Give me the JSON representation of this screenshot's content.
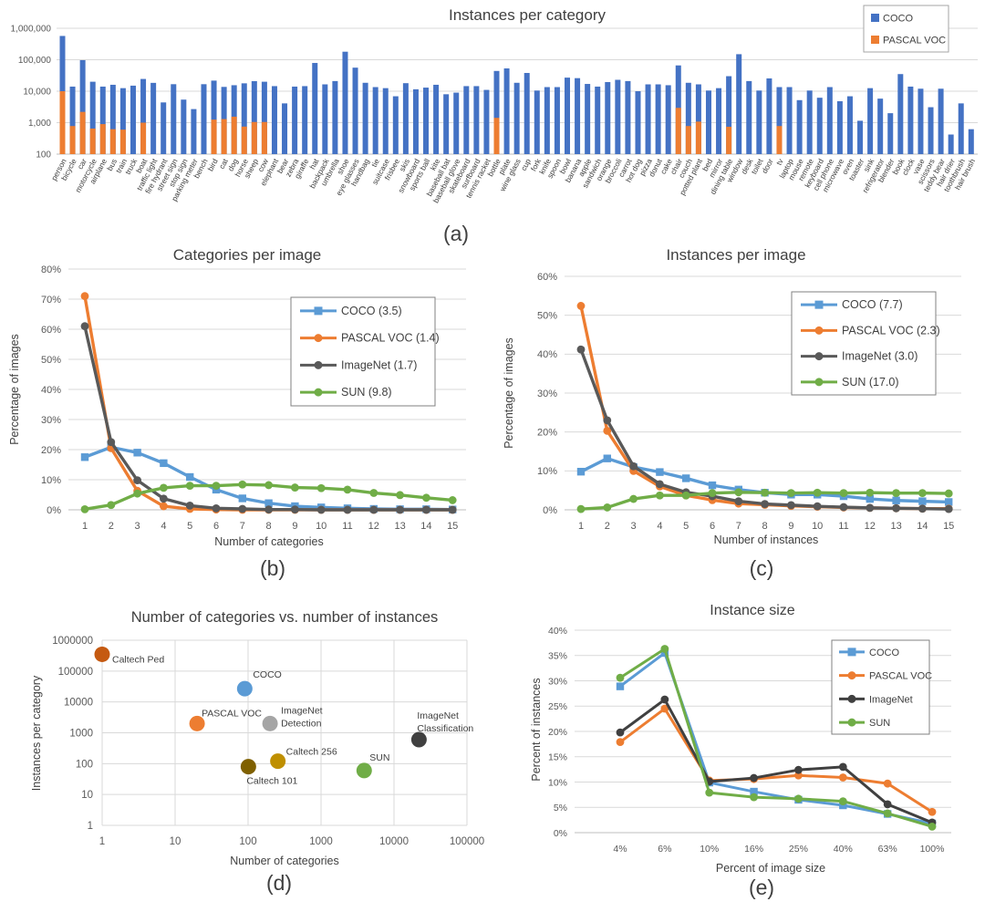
{
  "panels": {
    "a": "(a)",
    "b": "(b)",
    "c": "(c)",
    "d": "(d)",
    "e": "(e)"
  },
  "palette": {
    "coco_bar": "#4472C4",
    "pascal_orange": "#ED7D31",
    "coco_line": "#5B9BD5",
    "imagenet_gray": "#595959",
    "imagenet_dark": "#404040",
    "sun_green": "#70AD47",
    "gridline": "#D9D9D9",
    "axis_text": "#595959",
    "title_text": "#404040"
  },
  "chart_data": [
    {
      "id": "a",
      "type": "bar",
      "title": "Instances per category",
      "y_axis": {
        "scale": "log",
        "ticks": [
          "100",
          "1,000",
          "10,000",
          "100,000",
          "1,000,000"
        ],
        "tick_values": [
          100,
          1000,
          10000,
          100000,
          1000000
        ]
      },
      "legend": [
        {
          "label": "COCO",
          "color": "#4472C4"
        },
        {
          "label": "PASCAL VOC",
          "color": "#ED7D31"
        }
      ],
      "categories": [
        "person",
        "bicycle",
        "car",
        "motorcycle",
        "airplane",
        "bus",
        "train",
        "truck",
        "boat",
        "traffic light",
        "fire hydrant",
        "street sign",
        "stop sign",
        "parking meter",
        "bench",
        "bird",
        "cat",
        "dog",
        "horse",
        "sheep",
        "cow",
        "elephant",
        "bear",
        "zebra",
        "giraffe",
        "hat",
        "backpack",
        "umbrella",
        "shoe",
        "eye glasses",
        "handbag",
        "tie",
        "suitcase",
        "frisbee",
        "skis",
        "snowboard",
        "sports ball",
        "kite",
        "baseball bat",
        "baseball glove",
        "skateboard",
        "surfboard",
        "tennis racket",
        "bottle",
        "plate",
        "wine glass",
        "cup",
        "fork",
        "knife",
        "spoon",
        "bowl",
        "banana",
        "apple",
        "sandwich",
        "orange",
        "broccoli",
        "carrot",
        "hot dog",
        "pizza",
        "donut",
        "cake",
        "chair",
        "couch",
        "potted plant",
        "bed",
        "mirror",
        "dining table",
        "window",
        "desk",
        "toilet",
        "door",
        "tv",
        "laptop",
        "mouse",
        "remote",
        "keyboard",
        "cell phone",
        "microwave",
        "oven",
        "toaster",
        "sink",
        "refrigerator",
        "blender",
        "book",
        "clock",
        "vase",
        "scissors",
        "teddy bear",
        "hair drier",
        "toothbrush",
        "hair brush"
      ],
      "series": [
        {
          "name": "COCO",
          "color": "#4472C4",
          "values": [
            570000,
            14000,
            97000,
            20000,
            14000,
            16000,
            12500,
            15000,
            24500,
            18400,
            4400,
            16700,
            5400,
            2700,
            16700,
            21700,
            13700,
            15500,
            17800,
            20900,
            20000,
            14500,
            4100,
            14000,
            14500,
            79000,
            16500,
            21000,
            180000,
            56000,
            18500,
            13500,
            12500,
            6900,
            18000,
            11500,
            13000,
            16000,
            8000,
            9000,
            14500,
            14500,
            11000,
            44000,
            53000,
            18500,
            38000,
            10500,
            13500,
            13500,
            27000,
            26000,
            17000,
            14000,
            19500,
            23000,
            21000,
            10000,
            16500,
            16500,
            15500,
            66000,
            18500,
            16500,
            10500,
            12500,
            30000,
            150000,
            21000,
            10500,
            25500,
            13500,
            13500,
            5200,
            10500,
            6200,
            13500,
            4800,
            6900,
            1150,
            12500,
            5800,
            2000,
            35000,
            14000,
            12000,
            3100,
            12000,
            420,
            4100,
            620
          ]
        },
        {
          "name": "PASCAL VOC",
          "color": "#ED7D31",
          "values": [
            10000,
            780,
            2200,
            650,
            900,
            620,
            600,
            0,
            1000,
            0,
            0,
            0,
            0,
            0,
            0,
            1250,
            1300,
            1550,
            750,
            1050,
            1050,
            0,
            0,
            0,
            0,
            0,
            0,
            0,
            0,
            0,
            0,
            0,
            0,
            0,
            0,
            0,
            0,
            0,
            0,
            0,
            0,
            0,
            0,
            1420,
            0,
            0,
            0,
            0,
            0,
            0,
            0,
            0,
            0,
            0,
            0,
            0,
            0,
            0,
            0,
            0,
            0,
            2950,
            780,
            1080,
            0,
            0,
            740,
            0,
            0,
            0,
            0,
            780,
            0,
            0,
            0,
            0,
            0,
            0,
            0,
            0,
            0,
            0,
            0,
            0,
            0,
            0,
            0,
            0,
            0,
            0,
            0
          ]
        }
      ]
    },
    {
      "id": "b",
      "type": "line",
      "title": "Categories per image",
      "xlabel": "Number of categories",
      "ylabel": "Percentage of images",
      "x": [
        1,
        2,
        3,
        4,
        5,
        6,
        7,
        8,
        9,
        10,
        11,
        12,
        13,
        14,
        15
      ],
      "ylim": [
        0,
        80
      ],
      "ytick_step": 10,
      "series": [
        {
          "name": "COCO (3.5)",
          "color": "#5B9BD5",
          "marker": "square",
          "values": [
            17.5,
            20.8,
            19.0,
            15.5,
            10.9,
            6.7,
            3.8,
            2.2,
            1.2,
            0.8,
            0.5,
            0.3,
            0.2,
            0.2,
            0.1
          ]
        },
        {
          "name": "PASCAL VOC (1.4)",
          "color": "#ED7D31",
          "marker": "circle",
          "values": [
            71,
            20.5,
            6.3,
            1.2,
            0.3,
            0.1,
            0,
            0,
            0,
            0,
            0,
            0,
            0,
            0,
            0
          ]
        },
        {
          "name": "ImageNet (1.7)",
          "color": "#595959",
          "marker": "circle",
          "values": [
            61,
            22.5,
            9.8,
            3.7,
            1.4,
            0.5,
            0.3,
            0.1,
            0.1,
            0,
            0,
            0,
            0,
            0,
            0
          ]
        },
        {
          "name": "SUN (9.8)",
          "color": "#70AD47",
          "marker": "circle",
          "values": [
            0.2,
            1.6,
            5.4,
            7.3,
            8.0,
            8.0,
            8.4,
            8.2,
            7.4,
            7.2,
            6.7,
            5.6,
            4.9,
            4.0,
            3.2
          ]
        }
      ]
    },
    {
      "id": "c",
      "type": "line",
      "title": "Instances per image",
      "xlabel": "Number of instances",
      "ylabel": "Percentage of images",
      "x": [
        1,
        2,
        3,
        4,
        5,
        6,
        7,
        8,
        9,
        10,
        11,
        12,
        13,
        14,
        15
      ],
      "ylim": [
        0,
        60
      ],
      "ytick_step": 10,
      "series": [
        {
          "name": "COCO (7.7)",
          "color": "#5B9BD5",
          "marker": "square",
          "values": [
            9.8,
            13.2,
            11.0,
            9.7,
            8.1,
            6.3,
            5.2,
            4.4,
            3.9,
            3.9,
            3.5,
            2.8,
            2.4,
            2.2,
            2.0
          ]
        },
        {
          "name": "PASCAL VOC (2.3)",
          "color": "#ED7D31",
          "marker": "circle",
          "values": [
            52.4,
            20.3,
            10.0,
            6.0,
            3.7,
            2.5,
            1.6,
            1.3,
            1.0,
            0.8,
            0.6,
            0.5,
            0.4,
            0.3,
            0.3
          ]
        },
        {
          "name": "ImageNet (3.0)",
          "color": "#595959",
          "marker": "circle",
          "values": [
            41.2,
            23.0,
            11.2,
            6.6,
            4.5,
            3.5,
            2.2,
            1.5,
            1.2,
            0.9,
            0.7,
            0.5,
            0.4,
            0.3,
            0.2
          ]
        },
        {
          "name": "SUN (17.0)",
          "color": "#70AD47",
          "marker": "circle",
          "values": [
            0.2,
            0.6,
            2.8,
            3.7,
            3.7,
            4.3,
            4.5,
            4.4,
            4.3,
            4.4,
            4.3,
            4.4,
            4.3,
            4.3,
            4.2
          ]
        }
      ]
    },
    {
      "id": "d",
      "type": "scatter",
      "title": "Number of categories vs. number of instances",
      "xlabel": "Number of categories",
      "ylabel": "Instances per category",
      "xscale": "log",
      "yscale": "log",
      "xlim": [
        1,
        100000
      ],
      "ylim": [
        1,
        1000000
      ],
      "x_ticks": [
        "1",
        "10",
        "100",
        "1000",
        "10000",
        "100000"
      ],
      "y_ticks": [
        "1",
        "10",
        "100",
        "1000",
        "10000",
        "100000",
        "1000000"
      ],
      "points": [
        {
          "label": "Caltech Ped",
          "x": 1,
          "y": 350000,
          "color": "#C55A11"
        },
        {
          "label": "COCO",
          "x": 90,
          "y": 27000,
          "color": "#5B9BD5"
        },
        {
          "label": "PASCAL VOC",
          "x": 20,
          "y": 2000,
          "color": "#ED7D31"
        },
        {
          "label": "ImageNet Detection",
          "x": 200,
          "y": 2000,
          "color": "#A5A5A5"
        },
        {
          "label": "Caltech 101",
          "x": 101,
          "y": 80,
          "color": "#7F6000"
        },
        {
          "label": "Caltech 256",
          "x": 256,
          "y": 120,
          "color": "#BF8F00"
        },
        {
          "label": "SUN",
          "x": 3900,
          "y": 60,
          "color": "#70AD47"
        },
        {
          "label": "ImageNet Classification",
          "x": 22000,
          "y": 600,
          "color": "#404040"
        }
      ]
    },
    {
      "id": "e",
      "type": "line",
      "title": "Instance size",
      "xlabel": "Percent of image size",
      "ylabel": "Percent of instances",
      "categories": [
        "4%",
        "6%",
        "10%",
        "16%",
        "25%",
        "40%",
        "63%",
        "100%"
      ],
      "ylim": [
        0,
        40
      ],
      "ytick_step": 5,
      "series": [
        {
          "name": "COCO",
          "color": "#5B9BD5",
          "marker": "square",
          "values": [
            28.9,
            35.5,
            9.9,
            8.1,
            6.5,
            5.4,
            3.7,
            1.8
          ]
        },
        {
          "name": "PASCAL VOC",
          "color": "#ED7D31",
          "marker": "circle",
          "values": [
            17.9,
            24.5,
            10.3,
            10.6,
            11.3,
            10.9,
            9.7,
            4.1
          ]
        },
        {
          "name": "ImageNet",
          "color": "#404040",
          "marker": "circle",
          "values": [
            19.8,
            26.3,
            10.1,
            10.8,
            12.4,
            13.0,
            5.6,
            2.0
          ]
        },
        {
          "name": "SUN",
          "color": "#70AD47",
          "marker": "circle",
          "values": [
            30.6,
            36.3,
            7.9,
            7.0,
            6.7,
            6.2,
            3.8,
            1.2
          ]
        }
      ]
    }
  ]
}
